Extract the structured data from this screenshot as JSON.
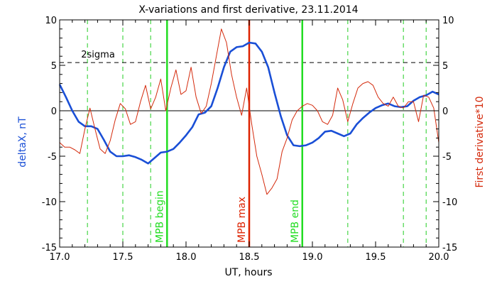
{
  "chart_data": {
    "type": "line",
    "title": "X-variations and first derivative, 23.11.2014",
    "xlabel": "UT, hours",
    "ylabel_left": "deltaX, nT",
    "ylabel_right": "First derivative*10",
    "xlim": [
      17.0,
      20.0
    ],
    "ylim": [
      -15,
      10
    ],
    "x_ticks": [
      17.0,
      17.5,
      18.0,
      18.5,
      19.0,
      19.5,
      20.0
    ],
    "x_tick_labels": [
      "17.0",
      "17.5",
      "18.0",
      "18.5",
      "19.0",
      "19.5",
      "20.0"
    ],
    "y_ticks": [
      -15,
      -10,
      -5,
      0,
      5,
      10
    ],
    "y_tick_labels_left": [
      "-15",
      "-10",
      "-5",
      "0",
      "5",
      "10"
    ],
    "y_tick_labels_right": [
      "-15",
      "-10",
      "-5",
      "0",
      "5",
      "10"
    ],
    "sigma_level": 5.3,
    "sigma_label": "2sigma",
    "colors": {
      "deltaX": "#1a4fd6",
      "derivative": "#d42a0c",
      "green_marker": "#22dd22",
      "red_marker": "#dd2200",
      "dashed_green": "#22cc22"
    },
    "dashed_green_lines": [
      17.22,
      17.5,
      17.72,
      19.28,
      19.72,
      19.9
    ],
    "markers": [
      {
        "x": 17.85,
        "label": "MPB begin",
        "color": "green"
      },
      {
        "x": 18.5,
        "label": "MPB max",
        "color": "red"
      },
      {
        "x": 18.92,
        "label": "MPB end",
        "color": "green"
      }
    ],
    "series": [
      {
        "key": "deltaX",
        "x": [
          17.0,
          17.05,
          17.1,
          17.15,
          17.2,
          17.25,
          17.3,
          17.35,
          17.4,
          17.45,
          17.5,
          17.55,
          17.6,
          17.65,
          17.7,
          17.75,
          17.8,
          17.85,
          17.9,
          17.95,
          18.0,
          18.05,
          18.1,
          18.15,
          18.2,
          18.25,
          18.3,
          18.35,
          18.4,
          18.45,
          18.5,
          18.55,
          18.6,
          18.65,
          18.7,
          18.75,
          18.8,
          18.85,
          18.9,
          18.95,
          19.0,
          19.05,
          19.1,
          19.15,
          19.2,
          19.25,
          19.3,
          19.35,
          19.4,
          19.45,
          19.5,
          19.55,
          19.6,
          19.65,
          19.7,
          19.75,
          19.8,
          19.85,
          19.9,
          19.95,
          20.0
        ],
        "values": [
          2.9,
          1.5,
          0.0,
          -1.2,
          -1.7,
          -1.7,
          -2.0,
          -3.2,
          -4.5,
          -5.0,
          -5.0,
          -4.9,
          -5.1,
          -5.4,
          -5.8,
          -5.2,
          -4.6,
          -4.5,
          -4.2,
          -3.5,
          -2.7,
          -1.8,
          -0.4,
          -0.2,
          0.5,
          2.5,
          4.8,
          6.5,
          7.0,
          7.1,
          7.5,
          7.4,
          6.5,
          4.8,
          2.0,
          -0.6,
          -2.7,
          -3.8,
          -3.9,
          -3.8,
          -3.5,
          -3.0,
          -2.3,
          -2.2,
          -2.5,
          -2.8,
          -2.5,
          -1.5,
          -0.8,
          -0.2,
          0.3,
          0.6,
          0.8,
          0.5,
          0.4,
          0.5,
          1.1,
          1.5,
          1.7,
          2.1,
          1.8
        ]
      },
      {
        "key": "derivative",
        "x": [
          17.0,
          17.04,
          17.08,
          17.12,
          17.16,
          17.2,
          17.24,
          17.28,
          17.32,
          17.36,
          17.4,
          17.44,
          17.48,
          17.52,
          17.56,
          17.6,
          17.64,
          17.68,
          17.72,
          17.76,
          17.8,
          17.84,
          17.88,
          17.92,
          17.96,
          18.0,
          18.04,
          18.08,
          18.12,
          18.16,
          18.2,
          18.24,
          18.28,
          18.32,
          18.36,
          18.4,
          18.44,
          18.48,
          18.52,
          18.56,
          18.6,
          18.64,
          18.68,
          18.72,
          18.76,
          18.8,
          18.84,
          18.88,
          18.92,
          18.96,
          19.0,
          19.04,
          19.08,
          19.12,
          19.16,
          19.2,
          19.24,
          19.28,
          19.32,
          19.36,
          19.4,
          19.44,
          19.48,
          19.52,
          19.56,
          19.6,
          19.64,
          19.68,
          19.72,
          19.76,
          19.8,
          19.84,
          19.88,
          19.92,
          19.96,
          20.0
        ],
        "values": [
          -3.5,
          -4.0,
          -4.0,
          -4.3,
          -4.7,
          -2.0,
          0.3,
          -2.0,
          -4.2,
          -4.7,
          -3.3,
          -1.0,
          0.8,
          0.2,
          -1.5,
          -1.2,
          1.0,
          2.8,
          0.2,
          1.5,
          3.5,
          0.0,
          2.5,
          4.5,
          1.8,
          2.2,
          4.8,
          1.5,
          -0.3,
          0.5,
          3.0,
          6.0,
          9.0,
          7.5,
          4.0,
          1.5,
          -0.5,
          2.5,
          -1.5,
          -5.0,
          -7.0,
          -9.2,
          -8.5,
          -7.5,
          -4.5,
          -3.0,
          -1.0,
          0.0,
          0.5,
          0.8,
          0.6,
          0.0,
          -1.2,
          -1.5,
          -0.5,
          2.5,
          1.2,
          -1.2,
          0.8,
          2.5,
          3.0,
          3.2,
          2.8,
          1.5,
          0.8,
          0.5,
          1.5,
          0.5,
          0.3,
          1.0,
          1.0,
          -1.2,
          1.7,
          1.5,
          0.3,
          -3.5
        ]
      }
    ]
  }
}
